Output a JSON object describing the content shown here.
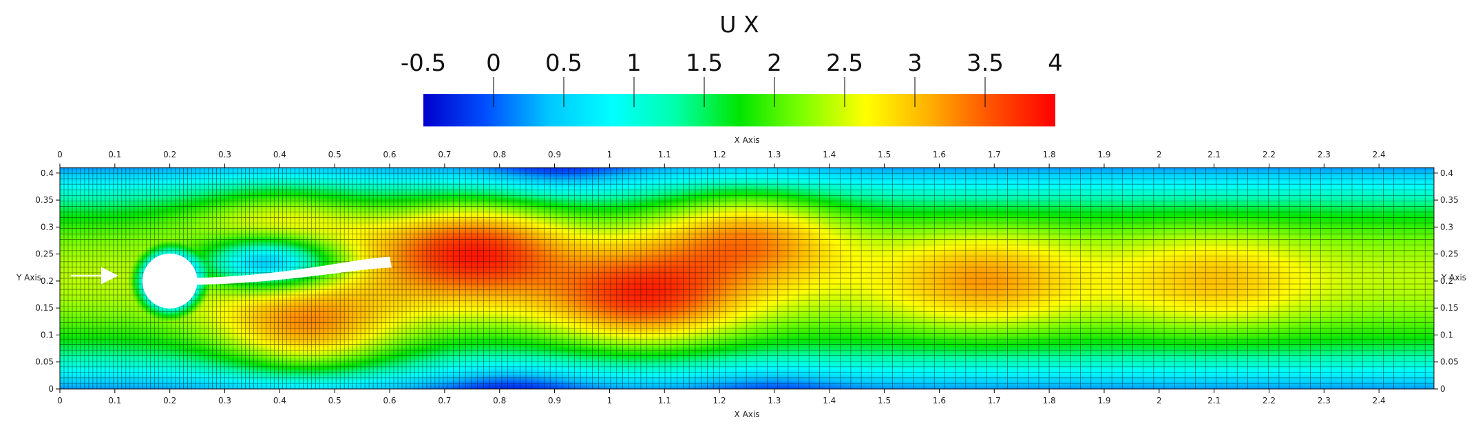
{
  "chart_data": {
    "type": "heatmap",
    "title": "U X",
    "colorbar": {
      "min": -0.5,
      "max": 4,
      "tick_labels": [
        "-0.5",
        "0",
        "0.5",
        "1",
        "1.5",
        "2",
        "2.5",
        "3",
        "3.5",
        "4"
      ],
      "tick_values": [
        -0.5,
        0,
        0.5,
        1,
        1.5,
        2,
        2.5,
        3,
        3.5,
        4
      ],
      "colormap": [
        "#0000cc",
        "#0050ff",
        "#00c8ff",
        "#00ffff",
        "#00ffaa",
        "#00e600",
        "#80ff00",
        "#ffff00",
        "#ffb000",
        "#ff5000",
        "#ff0000"
      ]
    },
    "xlabel": "X Axis",
    "ylabel": "Y Axis",
    "xlim": [
      0,
      2.5
    ],
    "ylim": [
      0,
      0.41
    ],
    "x_tick_values": [
      0,
      0.1,
      0.2,
      0.3,
      0.4,
      0.5,
      0.6,
      0.7,
      0.8,
      0.9,
      1,
      1.1,
      1.2,
      1.3,
      1.4,
      1.5,
      1.6,
      1.7,
      1.8,
      1.9,
      2,
      2.1,
      2.2,
      2.3,
      2.4
    ],
    "x_tick_labels": [
      "0",
      "0.1",
      "0.2",
      "0.3",
      "0.4",
      "0.5",
      "0.6",
      "0.7",
      "0.8",
      "0.9",
      "1",
      "1.1",
      "1.2",
      "1.3",
      "1.4",
      "1.5",
      "1.6",
      "1.7",
      "1.8",
      "1.9",
      "2",
      "2.1",
      "2.2",
      "2.3",
      "2.4"
    ],
    "y_tick_values": [
      0,
      0.05,
      0.1,
      0.15,
      0.2,
      0.25,
      0.3,
      0.35,
      0.4
    ],
    "y_tick_labels": [
      "0",
      "0.05",
      "0.1",
      "0.15",
      "0.2",
      "0.25",
      "0.3",
      "0.35",
      "0.4"
    ],
    "obstacles": {
      "cylinder": {
        "cx": 0.2,
        "cy": 0.2,
        "r": 0.05
      },
      "flag": {
        "x_start": 0.2,
        "x_end": 0.6,
        "y_root": 0.2,
        "y_tip_bottom": 0.225,
        "y_tip_top": 0.245,
        "thickness": 0.01
      }
    },
    "inflow_arrow": {
      "x_start": 0.02,
      "x_end": 0.1,
      "y": 0.21
    },
    "field_features": [
      {
        "kind": "high",
        "x": 0.45,
        "y": 0.1,
        "value": 3.1
      },
      {
        "kind": "high",
        "x": 0.4,
        "y": 0.3,
        "value": 2.9
      },
      {
        "kind": "high",
        "x": 0.75,
        "y": 0.26,
        "value": 3.8
      },
      {
        "kind": "high",
        "x": 1.06,
        "y": 0.165,
        "value": 3.7
      },
      {
        "kind": "high",
        "x": 1.25,
        "y": 0.29,
        "value": 3.2
      },
      {
        "kind": "high",
        "x": 1.68,
        "y": 0.2,
        "value": 3.2
      },
      {
        "kind": "high",
        "x": 2.1,
        "y": 0.2,
        "value": 3.0
      },
      {
        "kind": "low",
        "x": 0.38,
        "y": 0.235,
        "value": -0.2
      },
      {
        "kind": "low",
        "x": 0.82,
        "y": 0.0,
        "value": -0.3
      },
      {
        "kind": "low",
        "x": 0.9,
        "y": 0.41,
        "value": -0.3
      },
      {
        "kind": "low",
        "x": 1.3,
        "y": 0.0,
        "value": -0.1
      }
    ]
  }
}
